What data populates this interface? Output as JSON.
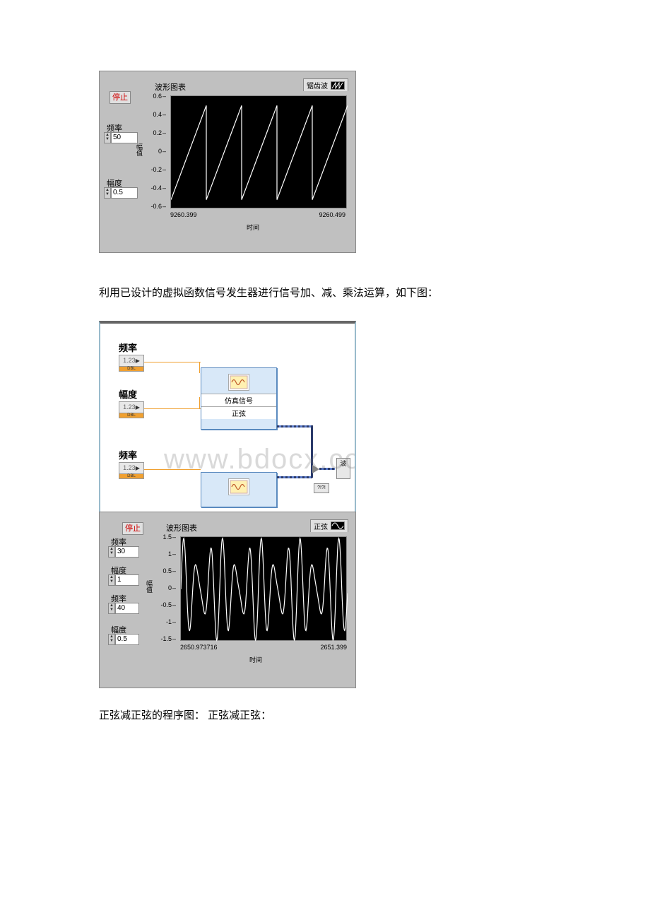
{
  "panel1": {
    "stop_label": "停止",
    "freq_label": "频率",
    "freq_value": "50",
    "amp_label": "幅度",
    "amp_value": "0.5",
    "chart_title": "波形图表",
    "legend_label": "锯齿波",
    "yticks": [
      "0.6",
      "0.4",
      "0.2",
      "0",
      "-0.2",
      "-0.4",
      "-0.6"
    ],
    "ylabel": "幅值",
    "x_left": "9260.399",
    "x_right": "9260.499",
    "xlabel": "时间",
    "chart": {
      "type": "line",
      "wave": "sawtooth",
      "cycles": 5,
      "ylim": [
        -0.6,
        0.6
      ],
      "line_color": "#ffffff",
      "bg_color": "#000000",
      "line_width": 1.2
    }
  },
  "desc1": "利用已设计的虚拟函数信号发生器进行信号加、减、乘法运算，如下图：",
  "panel2": {
    "freq_label": "频率",
    "amp_label": "幅度",
    "freq2_label": "频率",
    "ctrl_text": "1.23",
    "dbl_text": "DBL",
    "sim_label1": "仿真信号",
    "sim_label2": "正弦",
    "out_label": "波",
    "watermark": "www.bdocx.com"
  },
  "panel3": {
    "stop_label": "停止",
    "chart_title": "波形图表",
    "legend_label": "正弦",
    "freq1_label": "频率",
    "freq1_value": "30",
    "amp1_label": "幅度",
    "amp1_value": "1",
    "freq2_label": "频率",
    "freq2_value": "40",
    "amp2_label": "幅度",
    "amp2_value": "0.5",
    "yticks": [
      "1.5",
      "1",
      "0.5",
      "0",
      "-0.5",
      "-1",
      "-1.5"
    ],
    "ylabel": "幅值",
    "x_left": "2650.973716",
    "x_right": "2651.399",
    "xlabel": "时间",
    "chart": {
      "type": "line",
      "wave": "sine-sum",
      "ylim": [
        -1.5,
        1.5
      ],
      "line_color": "#ffffff",
      "bg_color": "#000000",
      "line_width": 1.2
    }
  },
  "desc2": "正弦减正弦的程序图：  正弦减正弦："
}
